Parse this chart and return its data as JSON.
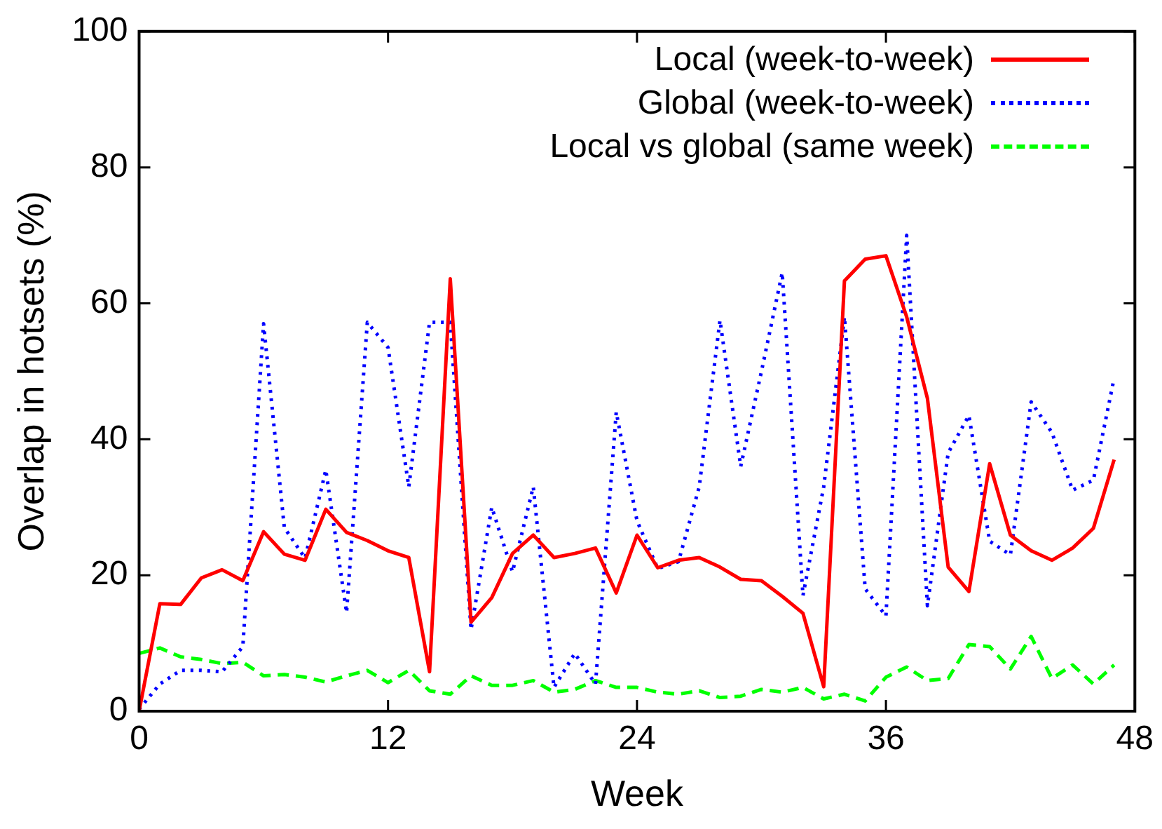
{
  "chart_data": {
    "type": "line",
    "xlabel": "Week",
    "ylabel": "Overlap in hotsets (%)",
    "x": [
      0,
      1,
      2,
      3,
      4,
      5,
      6,
      7,
      8,
      9,
      10,
      11,
      12,
      13,
      14,
      15,
      16,
      17,
      18,
      19,
      20,
      21,
      22,
      23,
      24,
      25,
      26,
      27,
      28,
      29,
      30,
      31,
      32,
      33,
      34,
      35,
      36,
      37,
      38,
      39,
      40,
      41,
      42,
      43,
      44,
      45,
      46,
      47
    ],
    "xlim": [
      0,
      48
    ],
    "xticks": [
      0,
      12,
      24,
      36,
      48
    ],
    "ylim": [
      0,
      100
    ],
    "yticks": [
      0,
      20,
      40,
      60,
      80,
      100
    ],
    "grid": false,
    "legend": "top right",
    "marker": "none",
    "series": [
      {
        "name": "Local (week-to-week)",
        "color": "#ff0000",
        "line_style": "solid",
        "values": [
          0,
          15.8,
          15.7,
          19.6,
          20.8,
          19.2,
          26.4,
          23.1,
          22.2,
          29.7,
          26.3,
          25.1,
          23.6,
          22.6,
          5.8,
          63.6,
          13.1,
          16.7,
          23.2,
          25.9,
          22.6,
          23.2,
          24,
          17.4,
          25.9,
          21.1,
          22.2,
          22.6,
          21.2,
          19.4,
          19.2,
          16.9,
          14.4,
          3.6,
          63.3,
          66.5,
          67,
          58,
          46,
          21.2,
          17.6,
          36.4,
          25.9,
          23.6,
          22.2,
          24,
          26.9,
          37
        ]
      },
      {
        "name": "Global (week-to-week)",
        "color": "#0000ff",
        "line_style": "dotted",
        "values": [
          0.3,
          4,
          6,
          6,
          5.8,
          9.5,
          57,
          27,
          22.5,
          35.5,
          14.5,
          57.2,
          53.5,
          33,
          57.2,
          57.2,
          12,
          30,
          20.5,
          33,
          3.5,
          8.5,
          4,
          44,
          28,
          21,
          22,
          33,
          57.5,
          36,
          50,
          64.5,
          17,
          33,
          58,
          18,
          14,
          70,
          15.5,
          38,
          43.5,
          25,
          23,
          45.5,
          41,
          32.5,
          34,
          49
        ]
      },
      {
        "name": "Local vs global (same week)",
        "color": "#00ff00",
        "line_style": "dashed",
        "values": [
          8.5,
          9.3,
          8,
          7.6,
          7,
          7.2,
          5.2,
          5.4,
          5,
          4.3,
          5.2,
          6,
          4.2,
          6,
          3,
          2.5,
          5.2,
          3.8,
          3.8,
          4.5,
          2.8,
          3.2,
          4.5,
          3.5,
          3.5,
          2.8,
          2.5,
          3,
          2,
          2.2,
          3.2,
          2.8,
          3.5,
          1.8,
          2.5,
          1.5,
          5,
          6.5,
          4.5,
          4.8,
          9.8,
          9.5,
          6.2,
          11,
          4.8,
          6.8,
          4,
          6.8
        ]
      }
    ]
  }
}
